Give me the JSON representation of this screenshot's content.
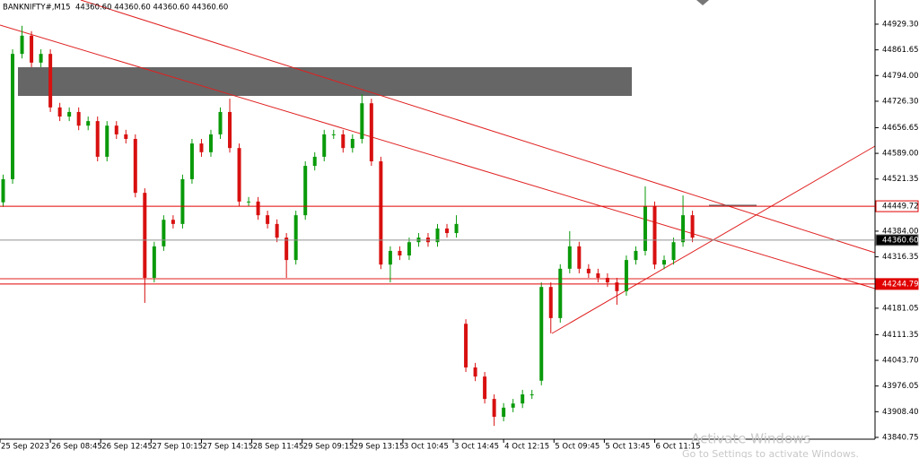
{
  "chart_data": {
    "type": "candlestick",
    "title": "BANKNIFTY#,M15  44360.60 44360.60 44360.60 44360.60",
    "colors": {
      "up": "#0a9a0a",
      "down": "#d81010"
    },
    "x": [
      1,
      4,
      7,
      10,
      13,
      16,
      19,
      22,
      25,
      28,
      31,
      34,
      37,
      40,
      43,
      46,
      49,
      52,
      55,
      58,
      61,
      64,
      67,
      70,
      73,
      76,
      79,
      82,
      85,
      88,
      91,
      94,
      97,
      100,
      103,
      106,
      109,
      112,
      115,
      118,
      121,
      124,
      127,
      130,
      133,
      136,
      139,
      142,
      145,
      148,
      151,
      154,
      157,
      160,
      163,
      166,
      169,
      172,
      175,
      178,
      181,
      184,
      187,
      190,
      193,
      196,
      199,
      202,
      205,
      208,
      211,
      214,
      217,
      220
    ],
    "open": [
      44460,
      44521,
      44851,
      44899,
      44828,
      44851,
      44710,
      44686,
      44698,
      44662,
      44674,
      44580,
      44662,
      44639,
      44627,
      44485,
      44261,
      44344,
      44414,
      44403,
      44521,
      44615,
      44592,
      44639,
      44698,
      44603,
      44462,
      44462,
      44426,
      44403,
      44367,
      44308,
      44426,
      44556,
      44580,
      44639,
      44639,
      44603,
      44627,
      44721,
      44568,
      44296,
      44332,
      44320,
      44355,
      44367,
      44355,
      44391,
      44379,
      44140,
      44025,
      44001,
      43942,
      43895,
      43919,
      43930,
      43954,
      43990,
      44237,
      44155,
      44285,
      44344,
      44285,
      44273,
      44261,
      44249,
      44226,
      44308,
      44332,
      44450,
      44296,
      44308,
      44355,
      44426
    ],
    "high": [
      44533,
      44863,
      44925,
      44911,
      44863,
      44863,
      44722,
      44710,
      44710,
      44686,
      44686,
      44674,
      44674,
      44651,
      44639,
      44497,
      44356,
      44426,
      44426,
      44533,
      44627,
      44627,
      44651,
      44710,
      44733,
      44615,
      44474,
      44474,
      44438,
      44415,
      44379,
      44438,
      44568,
      44592,
      44651,
      44651,
      44651,
      44639,
      44745,
      44733,
      44580,
      44344,
      44344,
      44367,
      44379,
      44379,
      44403,
      44403,
      44426,
      44152,
      44037,
      44013,
      43954,
      43931,
      43942,
      43966,
      43966,
      44249,
      44249,
      44297,
      44384,
      44356,
      44297,
      44285,
      44273,
      44261,
      44320,
      44344,
      44502,
      44462,
      44320,
      44367,
      44478,
      44438
    ],
    "low": [
      44448,
      44509,
      44839,
      44816,
      44816,
      44698,
      44674,
      44674,
      44650,
      44650,
      44568,
      44568,
      44627,
      44615,
      44473,
      44195,
      44249,
      44332,
      44391,
      44391,
      44509,
      44580,
      44580,
      44627,
      44591,
      44450,
      44450,
      44414,
      44391,
      44355,
      44261,
      44296,
      44414,
      44544,
      44568,
      44627,
      44591,
      44591,
      44615,
      44556,
      44284,
      44249,
      44308,
      44308,
      44343,
      44343,
      44343,
      44367,
      44367,
      44013,
      43989,
      43930,
      43871,
      43883,
      43907,
      43918,
      43942,
      43978,
      44115,
      44143,
      44273,
      44273,
      44261,
      44249,
      44237,
      44190,
      44214,
      44296,
      44320,
      44284,
      44284,
      44296,
      44343,
      44355
    ],
    "close": [
      44521,
      44851,
      44899,
      44828,
      44851,
      44710,
      44686,
      44698,
      44662,
      44674,
      44580,
      44662,
      44639,
      44627,
      44485,
      44261,
      44344,
      44414,
      44403,
      44521,
      44615,
      44592,
      44639,
      44698,
      44603,
      44462,
      44462,
      44426,
      44403,
      44367,
      44308,
      44426,
      44556,
      44580,
      44639,
      44639,
      44603,
      44627,
      44721,
      44568,
      44296,
      44332,
      44320,
      44355,
      44367,
      44355,
      44391,
      44379,
      44403,
      44025,
      44001,
      43942,
      43895,
      43919,
      43930,
      43954,
      43954,
      44237,
      44155,
      44285,
      44344,
      44285,
      44273,
      44261,
      44249,
      44226,
      44308,
      44332,
      44450,
      44296,
      44308,
      44355,
      44426,
      44367
    ],
    "xlim": [
      0,
      278
    ],
    "xticks": [
      {
        "value": 0,
        "label": "25 Sep 2023"
      },
      {
        "value": 16,
        "label": "26 Sep 08:45"
      },
      {
        "value": 32,
        "label": "26 Sep 12:45"
      },
      {
        "value": 48,
        "label": "27 Sep 10:15"
      },
      {
        "value": 64,
        "label": "27 Sep 14:15"
      },
      {
        "value": 80,
        "label": "28 Sep 11:45"
      },
      {
        "value": 96,
        "label": "29 Sep 09:15"
      },
      {
        "value": 112,
        "label": "29 Sep 13:15"
      },
      {
        "value": 128,
        "label": "3 Oct 10:45"
      },
      {
        "value": 144,
        "label": "3 Oct 14:45"
      },
      {
        "value": 160,
        "label": "4 Oct 12:15"
      },
      {
        "value": 176,
        "label": "5 Oct 09:45"
      },
      {
        "value": 192,
        "label": "5 Oct 13:45"
      },
      {
        "value": 208,
        "label": "6 Oct 11:15"
      }
    ],
    "ylim": [
      43836,
      44993
    ],
    "yticks": [
      {
        "value": 44929.3,
        "label": "44929.30"
      },
      {
        "value": 44861.65,
        "label": "44861.65"
      },
      {
        "value": 44794,
        "label": "44794.00"
      },
      {
        "value": 44726.3,
        "label": "44726.30"
      },
      {
        "value": 44656.65,
        "label": "44656.65"
      },
      {
        "value": 44589,
        "label": "44589.00"
      },
      {
        "value": 44521.35,
        "label": "44521.35"
      },
      {
        "value": 44384,
        "label": "44384.00"
      },
      {
        "value": 44316.35,
        "label": "44316.35"
      },
      {
        "value": 44181.05,
        "label": "44181.05"
      },
      {
        "value": 44111.35,
        "label": "44111.35"
      },
      {
        "value": 44043.7,
        "label": "44043.70"
      },
      {
        "value": 43976.05,
        "label": "43976.05"
      },
      {
        "value": 43908.4,
        "label": "43908.40"
      },
      {
        "value": 43840.75,
        "label": "43840.75"
      }
    ],
    "hlines": [
      {
        "value": 44449.72,
        "label": "44449.72",
        "color": "#e00000"
      },
      {
        "value": 44360.6,
        "label": "44360.60",
        "color": "#909090"
      },
      {
        "value": 44244.79,
        "label": "44244.79",
        "color": "#e00000"
      }
    ],
    "watermark": [
      "Activate Windows",
      "Go to Settings to activate Windows."
    ]
  }
}
